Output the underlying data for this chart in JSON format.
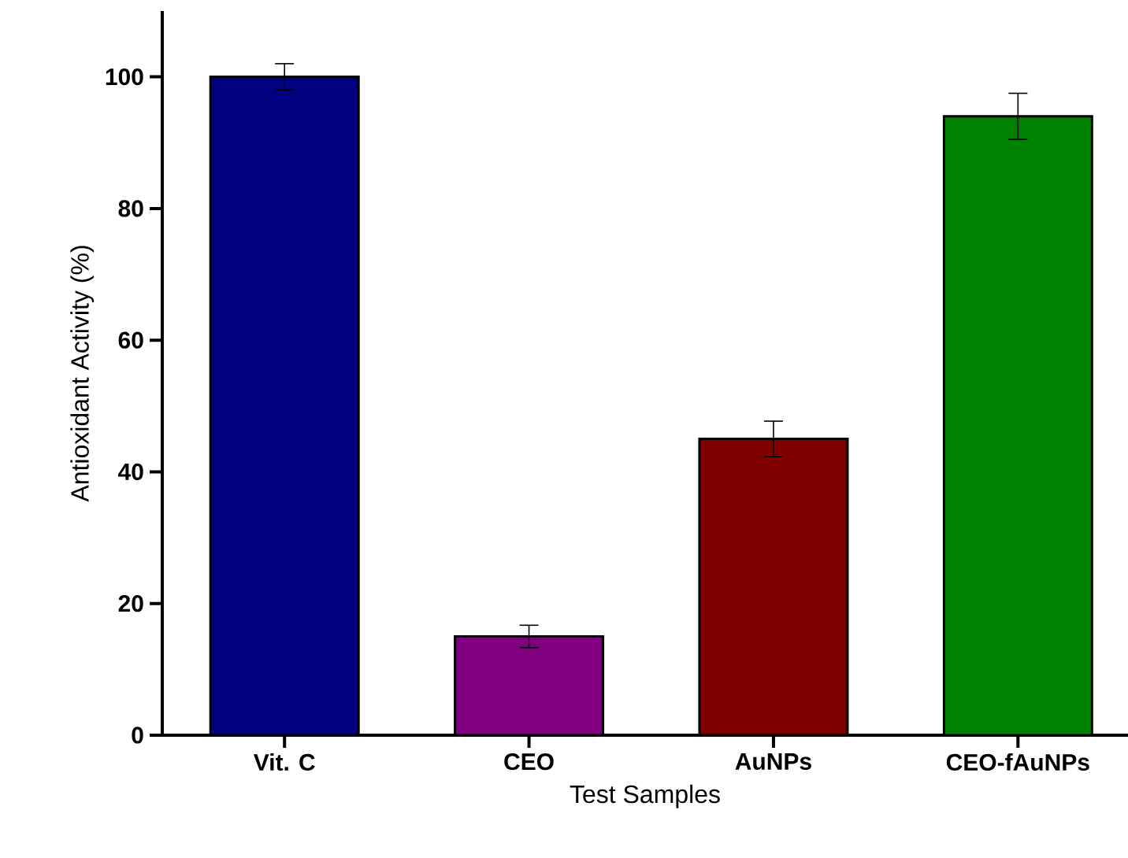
{
  "chart_data": {
    "type": "bar",
    "xlabel": "Test Samples",
    "ylabel": "Antioxidant Activity (%)",
    "categories": [
      "Vit. C",
      "CEO",
      "AuNPs",
      "CEO-fAuNPs"
    ],
    "values": [
      100,
      15,
      45,
      94
    ],
    "errors": [
      2,
      1.7,
      2.7,
      3.5
    ],
    "colors": [
      "#000080",
      "#800080",
      "#800000",
      "#008000"
    ],
    "ylim": [
      0,
      110
    ],
    "yticks": [
      0,
      20,
      40,
      60,
      80,
      100
    ],
    "grid": false
  }
}
